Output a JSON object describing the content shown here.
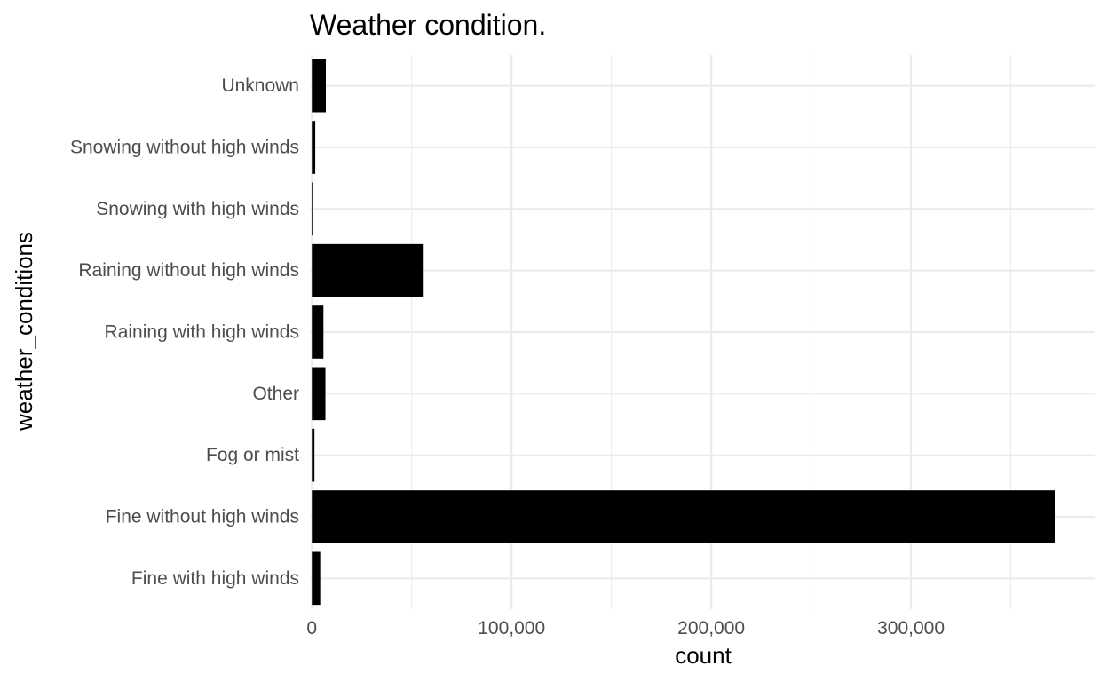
{
  "chart_data": {
    "type": "bar",
    "orientation": "horizontal",
    "title": "Weather condition.",
    "xlabel": "count",
    "ylabel": "weather_conditions",
    "categories": [
      "Fine with high winds",
      "Fine without high winds",
      "Fog or mist",
      "Other",
      "Raining with high winds",
      "Raining without high winds",
      "Snowing with high winds",
      "Snowing without high winds",
      "Unknown"
    ],
    "values": [
      4200,
      372000,
      1300,
      6800,
      5800,
      56000,
      400,
      1700,
      7000
    ],
    "xlim": [
      -1000,
      392000
    ],
    "xticks": [
      0,
      100000,
      200000,
      300000
    ],
    "xtick_labels": [
      "0",
      "100,000",
      "200,000",
      "300,000"
    ],
    "bar_color": "#000000",
    "grid": true
  }
}
